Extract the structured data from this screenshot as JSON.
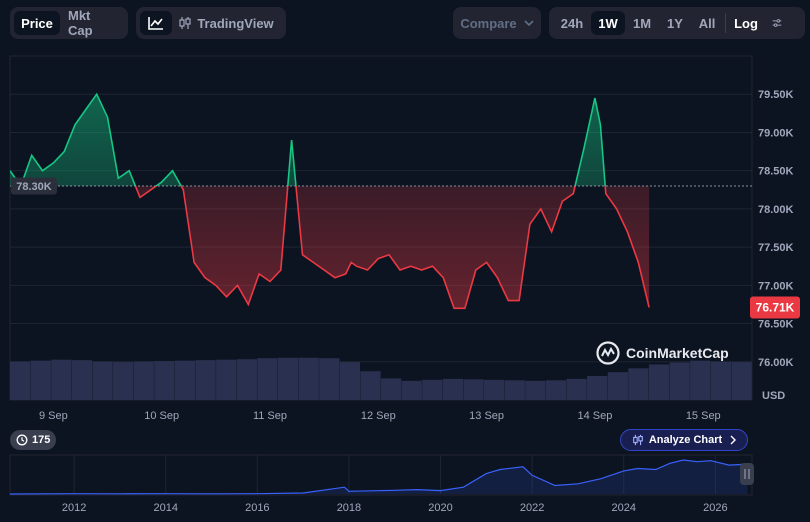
{
  "toolbar": {
    "price_label": "Price",
    "mktcap_label": "Mkt Cap",
    "line_icon": "line-chart-icon",
    "candle_icon": "candlestick-icon",
    "tradingview_label": "TradingView",
    "compare_label": "Compare",
    "ranges": [
      "24h",
      "1W",
      "1M",
      "1Y",
      "All"
    ],
    "active_range": "1W",
    "log_label": "Log",
    "settings_icon": "sliders-icon"
  },
  "brand": {
    "name": "CoinMarketCap",
    "logo_icon": "coinmarketcap-logo-icon"
  },
  "counter": {
    "icon": "history-icon",
    "value": "175"
  },
  "analyze": {
    "label": "Analyze Chart",
    "icon": "candlestick-icon",
    "chevron": "chevron-right-icon"
  },
  "colors": {
    "up": "#16c784",
    "down": "#ea3943",
    "volume": "#2a3150",
    "nav_line": "#3861fb",
    "background": "#0d1421"
  },
  "chart_data": {
    "type": "line",
    "currency": "USD",
    "reference_value": 78300,
    "reference_label": "78.30K",
    "last_value": 76710,
    "last_label": "76.71K",
    "ylim": [
      75500,
      80000
    ],
    "yticks": [
      {
        "value": 76000,
        "label": "76.00K"
      },
      {
        "value": 76500,
        "label": "76.50K"
      },
      {
        "value": 77000,
        "label": "77.00K"
      },
      {
        "value": 77500,
        "label": "77.50K"
      },
      {
        "value": 78000,
        "label": "78.00K"
      },
      {
        "value": 78500,
        "label": "78.50K"
      },
      {
        "value": 79000,
        "label": "79.00K"
      },
      {
        "value": 79500,
        "label": "79.50K"
      }
    ],
    "xticks": [
      "9 Sep",
      "10 Sep",
      "11 Sep",
      "12 Sep",
      "13 Sep",
      "14 Sep",
      "15 Sep"
    ],
    "x_day_range": [
      8.6,
      15.45
    ],
    "x_tick_days": [
      9,
      10,
      11,
      12,
      13,
      14,
      15
    ],
    "series": [
      {
        "x": [
          8.6,
          8.7,
          8.8,
          8.9,
          9.0,
          9.1,
          9.2,
          9.3,
          9.4,
          9.5,
          9.6,
          9.7,
          9.8,
          9.9,
          10.0,
          10.1,
          10.2,
          10.3,
          10.4,
          10.5,
          10.6,
          10.7,
          10.8,
          10.9,
          11.0,
          11.1,
          11.2,
          11.3,
          11.4,
          11.5,
          11.6,
          11.7,
          11.75,
          11.8,
          11.9,
          12.0,
          12.1,
          12.2,
          12.3,
          12.4,
          12.5,
          12.6,
          12.7,
          12.8,
          12.9,
          13.0,
          13.1,
          13.2,
          13.3,
          13.4,
          13.5,
          13.6,
          13.7,
          13.8,
          13.9,
          14.0,
          14.05,
          14.1,
          14.2,
          14.3,
          14.4,
          14.5,
          14.6,
          14.7,
          14.8,
          14.85,
          14.9,
          15.0,
          15.1,
          15.2,
          15.3,
          15.4,
          15.45
        ],
        "y": [
          78500,
          78300,
          78700,
          78500,
          78600,
          78750,
          79100,
          79300,
          79500,
          79200,
          78400,
          78500,
          78150,
          78250,
          78350,
          78500,
          78250,
          77300,
          77100,
          77000,
          76850,
          77000,
          76750,
          77150,
          77050,
          77200,
          78900,
          77400,
          77300,
          77200,
          77100,
          77150,
          77300,
          77250,
          77200,
          77350,
          77400,
          77200,
          77250,
          77200,
          77250,
          77100,
          76700,
          76700,
          77200,
          77300,
          77100,
          76800,
          76800,
          77800,
          78000,
          77700,
          78100,
          78200,
          78800,
          79450,
          79100,
          78200,
          78000,
          77700,
          77300,
          76710,
          null,
          null,
          null,
          null,
          null,
          null,
          null,
          null,
          null,
          null,
          null
        ]
      }
    ],
    "volume": {
      "values": [
        0.8,
        0.82,
        0.84,
        0.83,
        0.8,
        0.79,
        0.8,
        0.81,
        0.82,
        0.83,
        0.84,
        0.85,
        0.87,
        0.88,
        0.88,
        0.87,
        0.79,
        0.6,
        0.45,
        0.4,
        0.42,
        0.44,
        0.43,
        0.42,
        0.41,
        0.4,
        0.41,
        0.44,
        0.5,
        0.58,
        0.66,
        0.74,
        0.78,
        0.82,
        0.8,
        0.79
      ]
    },
    "navigator": {
      "xticks": [
        "2012",
        "2014",
        "2016",
        "2018",
        "2020",
        "2022",
        "2024",
        "2026"
      ],
      "years": [
        2010.6,
        2012,
        2013,
        2014,
        2015,
        2016,
        2017,
        2017.9,
        2018,
        2019,
        2019.5,
        2020,
        2020.5,
        2021,
        2021.3,
        2021.8,
        2022,
        2022.5,
        2023,
        2023.5,
        2024,
        2024.3,
        2024.7,
        2025,
        2025.3,
        2025.6,
        2025.9,
        2026.3,
        2026.7
      ],
      "values": [
        0,
        0.01,
        0.005,
        0.01,
        0.005,
        0.01,
        0.03,
        0.2,
        0.08,
        0.11,
        0.13,
        0.1,
        0.2,
        0.6,
        0.72,
        0.8,
        0.55,
        0.25,
        0.3,
        0.45,
        0.68,
        0.75,
        0.72,
        0.9,
        1.0,
        0.95,
        0.98,
        0.85,
        0.88
      ]
    }
  }
}
